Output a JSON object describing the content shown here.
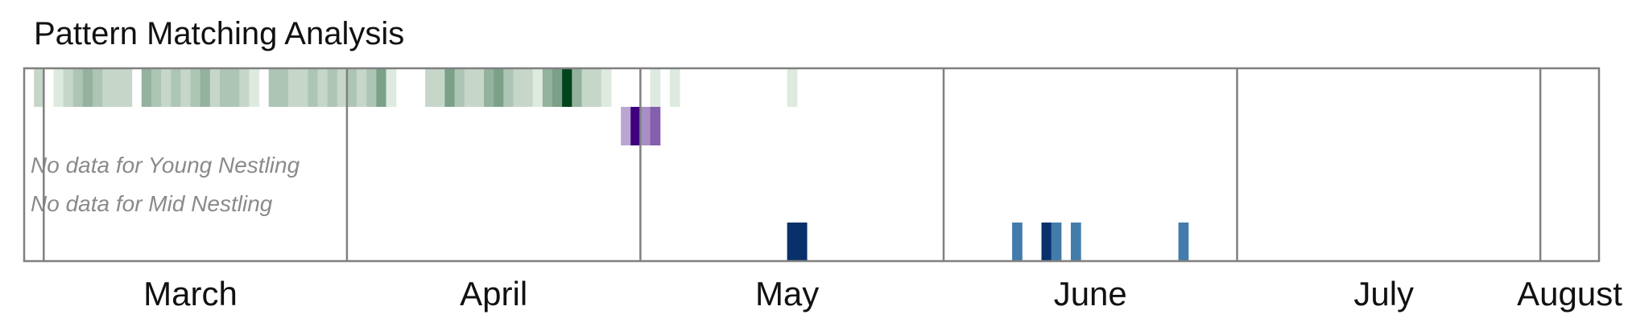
{
  "chart_data": {
    "type": "heatmap",
    "title": "Pattern Matching Analysis",
    "x_axis": {
      "start": "02-27",
      "end": "08-07",
      "unit": "day"
    },
    "months": [
      {
        "label": "March",
        "start": "03-01",
        "center": "03-16"
      },
      {
        "label": "April",
        "start": "04-01",
        "center": "04-16"
      },
      {
        "label": "May",
        "start": "05-01",
        "center": "05-16"
      },
      {
        "label": "June",
        "start": "06-01",
        "center": "06-16"
      },
      {
        "label": "July",
        "start": "07-01",
        "center": "07-16"
      },
      {
        "label": "August",
        "start": "08-01",
        "center": "08-04"
      }
    ],
    "rows": [
      {
        "name": "",
        "colormap": "greens",
        "cells": [
          {
            "date": "02-28",
            "v": 0.2
          },
          {
            "date": "03-02",
            "v": 0.1
          },
          {
            "date": "03-03",
            "v": 0.2
          },
          {
            "date": "03-04",
            "v": 0.3
          },
          {
            "date": "03-05",
            "v": 0.4
          },
          {
            "date": "03-06",
            "v": 0.3
          },
          {
            "date": "03-07",
            "v": 0.2
          },
          {
            "date": "03-08",
            "v": 0.2
          },
          {
            "date": "03-09",
            "v": 0.2
          },
          {
            "date": "03-11",
            "v": 0.4
          },
          {
            "date": "03-12",
            "v": 0.3
          },
          {
            "date": "03-13",
            "v": 0.2
          },
          {
            "date": "03-14",
            "v": 0.3
          },
          {
            "date": "03-15",
            "v": 0.2
          },
          {
            "date": "03-16",
            "v": 0.3
          },
          {
            "date": "03-17",
            "v": 0.4
          },
          {
            "date": "03-18",
            "v": 0.2
          },
          {
            "date": "03-19",
            "v": 0.3
          },
          {
            "date": "03-20",
            "v": 0.3
          },
          {
            "date": "03-21",
            "v": 0.2
          },
          {
            "date": "03-22",
            "v": 0.1
          },
          {
            "date": "03-24",
            "v": 0.3
          },
          {
            "date": "03-25",
            "v": 0.3
          },
          {
            "date": "03-26",
            "v": 0.2
          },
          {
            "date": "03-27",
            "v": 0.2
          },
          {
            "date": "03-28",
            "v": 0.3
          },
          {
            "date": "03-29",
            "v": 0.2
          },
          {
            "date": "03-30",
            "v": 0.3
          },
          {
            "date": "03-31",
            "v": 0.2
          },
          {
            "date": "04-01",
            "v": 0.3
          },
          {
            "date": "04-02",
            "v": 0.2
          },
          {
            "date": "04-03",
            "v": 0.3
          },
          {
            "date": "04-04",
            "v": 0.5
          },
          {
            "date": "04-05",
            "v": 0.1
          },
          {
            "date": "04-09",
            "v": 0.2
          },
          {
            "date": "04-10",
            "v": 0.2
          },
          {
            "date": "04-11",
            "v": 0.5
          },
          {
            "date": "04-12",
            "v": 0.3
          },
          {
            "date": "04-13",
            "v": 0.2
          },
          {
            "date": "04-14",
            "v": 0.2
          },
          {
            "date": "04-15",
            "v": 0.4
          },
          {
            "date": "04-16",
            "v": 0.5
          },
          {
            "date": "04-17",
            "v": 0.3
          },
          {
            "date": "04-18",
            "v": 0.2
          },
          {
            "date": "04-19",
            "v": 0.2
          },
          {
            "date": "04-20",
            "v": 0.1
          },
          {
            "date": "04-21",
            "v": 0.4
          },
          {
            "date": "04-22",
            "v": 0.5
          },
          {
            "date": "04-23",
            "v": 1.0
          },
          {
            "date": "04-24",
            "v": 0.4
          },
          {
            "date": "04-25",
            "v": 0.2
          },
          {
            "date": "04-26",
            "v": 0.2
          },
          {
            "date": "04-27",
            "v": 0.1
          },
          {
            "date": "05-02",
            "v": 0.1
          },
          {
            "date": "05-04",
            "v": 0.1
          },
          {
            "date": "05-16",
            "v": 0.1
          }
        ]
      },
      {
        "name": "",
        "colormap": "purples",
        "cells": [
          {
            "date": "04-29",
            "v": 0.3
          },
          {
            "date": "04-30",
            "v": 1.0
          },
          {
            "date": "05-01",
            "v": 0.4
          },
          {
            "date": "05-02",
            "v": 0.6
          }
        ]
      },
      {
        "name": "Young Nestling",
        "empty_label": "No data for Young Nestling",
        "cells": []
      },
      {
        "name": "Mid Nestling",
        "empty_label": "No data for Mid Nestling",
        "cells": []
      },
      {
        "name": "",
        "colormap": "blues",
        "cells": [
          {
            "date": "05-16",
            "v": 1.0
          },
          {
            "date": "05-17",
            "v": 1.0
          },
          {
            "date": "06-08",
            "v": 0.4
          },
          {
            "date": "06-11",
            "v": 1.0
          },
          {
            "date": "06-12",
            "v": 0.4
          },
          {
            "date": "06-14",
            "v": 0.4
          },
          {
            "date": "06-25",
            "v": 0.4
          }
        ]
      }
    ]
  }
}
